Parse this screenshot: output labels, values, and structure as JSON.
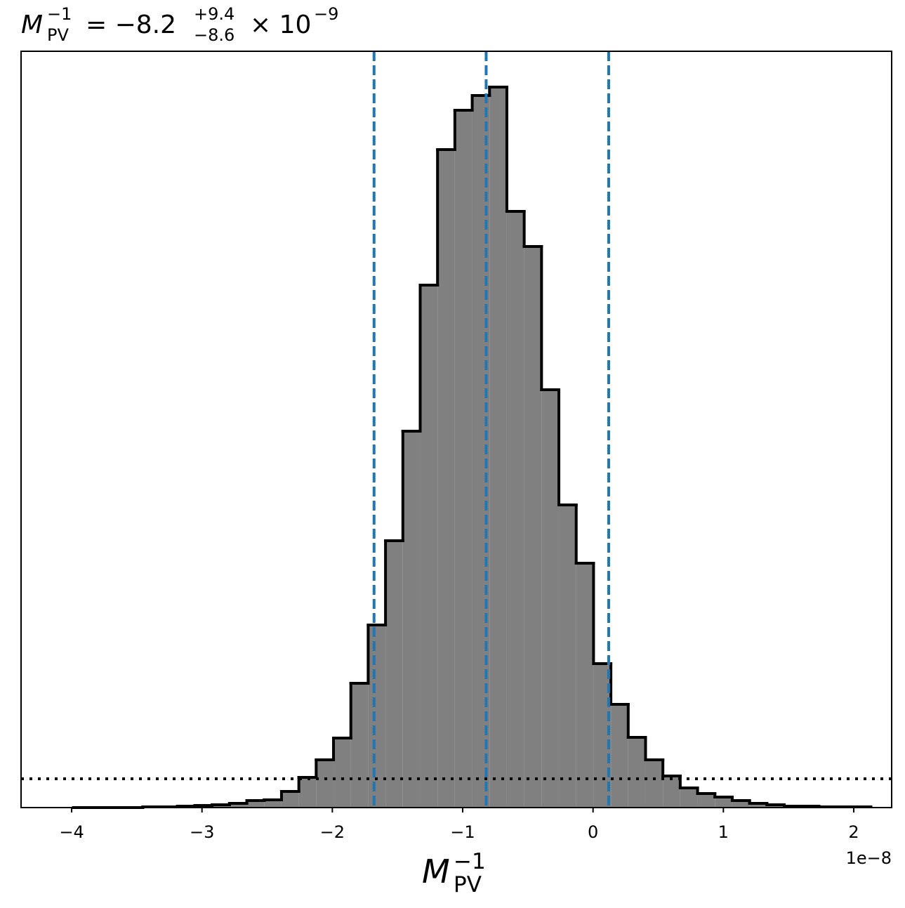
{
  "chart_data": {
    "type": "histogram",
    "title": {
      "symbol": "M",
      "symbol_sup": "−1",
      "symbol_sub": "PV",
      "value": "= −8.2",
      "upper": "+9.4",
      "lower": "−8.6",
      "times": "× 10",
      "exponent": "−9"
    },
    "xlabel": {
      "symbol": "M",
      "sup": "−1",
      "sub": "PV"
    },
    "offset_text": "1e−8",
    "bins": [
      -3.986,
      -3.853,
      -3.72,
      -3.587,
      -3.454,
      -3.321,
      -3.188,
      -3.055,
      -2.922,
      -2.789,
      -2.656,
      -2.523,
      -2.39,
      -2.257,
      -2.124,
      -1.991,
      -1.858,
      -1.725,
      -1.592,
      -1.459,
      -1.326,
      -1.193,
      -1.06,
      -0.927,
      -0.794,
      -0.661,
      -0.528,
      -0.395,
      -0.262,
      -0.129,
      0.004,
      0.137,
      0.27,
      0.403,
      0.536,
      0.669,
      0.802,
      0.935,
      1.068,
      1.201,
      1.334,
      1.467,
      1.6,
      1.733,
      1.866,
      1.999,
      2.132
    ],
    "counts": [
      0,
      0,
      0,
      0,
      0.1,
      0.1,
      0.2,
      0.3,
      0.4,
      0.6,
      1.0,
      1.1,
      2.3,
      4.3,
      6.8,
      9.9,
      17.7,
      26.0,
      38.0,
      53.6,
      74.4,
      93.7,
      99.3,
      101.4,
      102.6,
      84.9,
      79.9,
      59.5,
      43.1,
      34.8,
      20.5,
      14.7,
      10.0,
      6.8,
      4.5,
      2.8,
      2.0,
      1.5,
      1.0,
      0.6,
      0.4,
      0.2,
      0.2,
      0.1,
      0.1,
      0.1
    ],
    "color": "#808080",
    "edge_color": "#000000",
    "xlim": [
      -4.388,
      2.291
    ],
    "ylim": [
      0,
      107.7
    ],
    "xticks": [
      {
        "value": -4,
        "label": "−4"
      },
      {
        "value": -3,
        "label": "−3"
      },
      {
        "value": -2,
        "label": "−2"
      },
      {
        "value": -1,
        "label": "−1"
      },
      0,
      1,
      2
    ],
    "vlines": [
      -1.68,
      -0.82,
      0.12
    ],
    "vline_color": "#1f77b4",
    "hline": 4.1,
    "hline_color": "#000000"
  }
}
